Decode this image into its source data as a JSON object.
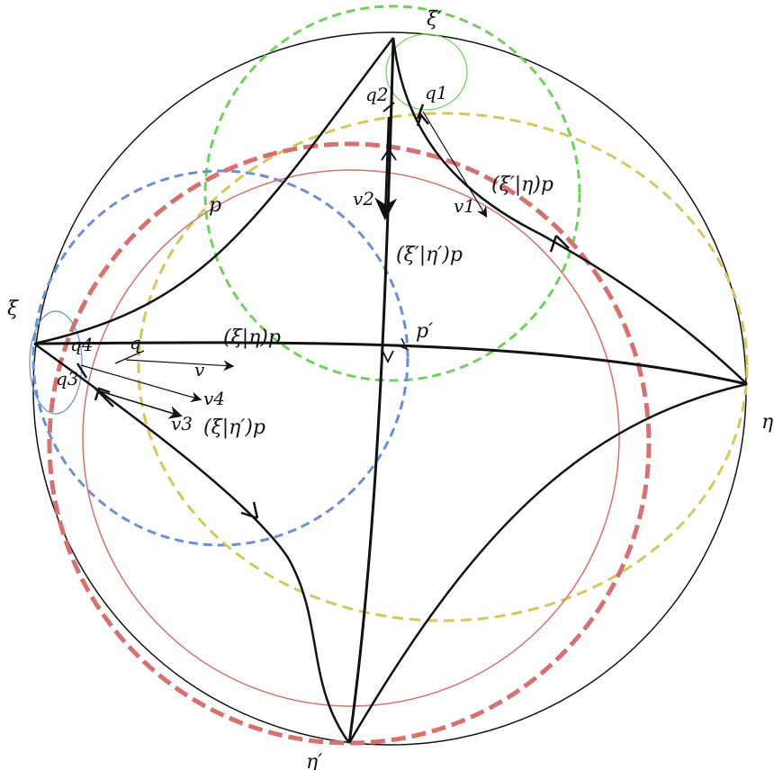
{
  "labels": {
    "xi_prime": "ξ′",
    "xi": "ξ",
    "eta": "η",
    "eta_prime": "η′",
    "p": "p",
    "p_prime": "p′",
    "q": "q",
    "q1": "q1",
    "q2": "q2",
    "q3": "q3",
    "q4": "q4",
    "v": "v",
    "v1": "v1",
    "v2": "v2",
    "v3": "v3",
    "v4": "v4",
    "xi_eta": "(ξ|η)p",
    "xi_eta_prime": "(ξ|η′)p",
    "xiprime_eta": "(ξ′|η)p",
    "xiprime_etaprime": "(ξ′|η′)p"
  },
  "colors": {
    "green": "#6fd15a",
    "blue": "#6a8fd6",
    "yellow": "#d4c85a",
    "red": "#d97070",
    "black": "#111111"
  }
}
